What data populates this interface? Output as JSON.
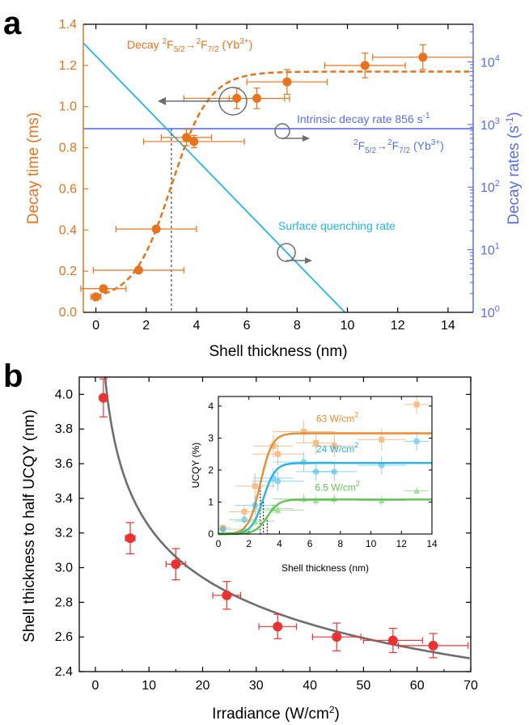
{
  "figure": {
    "panel_a_letter": "a",
    "panel_b_letter": "b"
  },
  "colors": {
    "orange": "#e8731c",
    "cyan": "#22b6ea",
    "blue": "#5a6ee8",
    "red": "#ec3333",
    "gray": "#6e6e6e",
    "inset_orange": "#ef8a2e",
    "inset_cyan": "#2ab2e6",
    "inset_green": "#62c452"
  },
  "chart_data": [
    {
      "id": "panel_a",
      "type": "scatter",
      "xlabel": "Shell thickness (nm)",
      "ylabel": "Decay time (ms)",
      "y2label": "Decay rates (s-1)",
      "xlim": [
        -0.5,
        15
      ],
      "ylim": [
        0,
        1.4
      ],
      "y2lim_log10": [
        0,
        4.6
      ],
      "y2_scale": "log",
      "x_ticks": [
        "0",
        "2",
        "4",
        "6",
        "8",
        "10",
        "12",
        "14"
      ],
      "y_ticks": [
        "0.0",
        "0.2",
        "0.4",
        "0.6",
        "0.8",
        "1.0",
        "1.2",
        "1.4"
      ],
      "y2_tick_exponents": [
        "0",
        "1",
        "2",
        "3",
        "4"
      ],
      "y2_tick_base": "10",
      "series": [
        {
          "name": "Decay 2F5/2→2F7/2 (Yb3+)",
          "axis": "left",
          "points": [
            {
              "x": 0.0,
              "y": 0.075,
              "xerr": 0.2,
              "yerr": 0.0
            },
            {
              "x": 0.3,
              "y": 0.115,
              "xerr": 0.9,
              "yerr": 0.0
            },
            {
              "x": 1.7,
              "y": 0.205,
              "xerr": 1.8,
              "yerr": 0.0
            },
            {
              "x": 2.4,
              "y": 0.405,
              "xerr": 1.6,
              "yerr": 0.0
            },
            {
              "x": 3.6,
              "y": 0.85,
              "xerr": 1.0,
              "yerr": 0.04
            },
            {
              "x": 3.9,
              "y": 0.83,
              "xerr": 2.0,
              "yerr": 0.03
            },
            {
              "x": 5.6,
              "y": 1.04,
              "xerr": 2.1,
              "yerr": 0.05
            },
            {
              "x": 6.4,
              "y": 1.04,
              "xerr": 1.1,
              "yerr": 0.05
            },
            {
              "x": 7.6,
              "y": 1.12,
              "xerr": 1.6,
              "yerr": 0.06
            },
            {
              "x": 10.7,
              "y": 1.2,
              "xerr": 1.6,
              "yerr": 0.06
            },
            {
              "x": 13.0,
              "y": 1.24,
              "xerr": 2.0,
              "yerr": 0.06
            }
          ],
          "fit": "sigmoid",
          "fit_params": {
            "base": 0.06,
            "top": 1.17,
            "x0": 3.0,
            "k": 0.75
          }
        },
        {
          "name": "Intrinsic decay rate 856 s-1",
          "axis": "right",
          "type": "horizontal-line",
          "value": 856
        },
        {
          "name": "Surface quenching rate",
          "axis": "right",
          "type": "line",
          "points": [
            {
              "x": -0.5,
              "y": 20000
            },
            {
              "x": 9.9,
              "y": 1
            }
          ]
        }
      ],
      "annotations": {
        "decay_pre": "Decay ",
        "decay_t1": "2",
        "decay_s1": "F",
        "decay_sub1": "5/2",
        "decay_arrow": "→",
        "decay_t2": "2",
        "decay_s2": "F",
        "decay_sub2": "7/2",
        "decay_post": " (Yb",
        "decay_sup": "3+",
        "decay_end": ")",
        "intrinsic": "Intrinsic decay rate  856 s",
        "intrinsic_sup": "-1",
        "transition_t1": "2",
        "transition_s1": "F",
        "transition_sub1": "5/2",
        "transition_arrow": "→",
        "transition_t2": "2",
        "transition_s2": "F",
        "transition_sub2": "7/2",
        "transition_post": " (Yb",
        "transition_sup": "3+",
        "transition_end": ")",
        "surface": "Surface quenching rate",
        "right_label_main": "Decay rates (s",
        "right_label_sup": "-1",
        "right_label_end": ")"
      },
      "crossing_x": 3.0
    },
    {
      "id": "panel_b",
      "type": "scatter",
      "xlabel_main": "Irradiance (W/cm",
      "xlabel_sup": "2",
      "xlabel_end": ")",
      "ylabel": "Shell thickness to half UCQY (nm)",
      "xlim": [
        -3,
        70
      ],
      "ylim": [
        2.4,
        4.1
      ],
      "x_ticks": [
        "0",
        "10",
        "20",
        "30",
        "40",
        "50",
        "60",
        "70"
      ],
      "y_ticks": [
        "2.4",
        "2.6",
        "2.8",
        "3.0",
        "3.2",
        "3.4",
        "3.6",
        "3.8",
        "4.0"
      ],
      "series": [
        {
          "name": "",
          "points": [
            {
              "x": 1.5,
              "y": 3.98,
              "xerr": 0.3,
              "yerr": 0.11
            },
            {
              "x": 6.5,
              "y": 3.17,
              "xerr": 0.9,
              "yerr": 0.09
            },
            {
              "x": 15.0,
              "y": 3.02,
              "xerr": 1.8,
              "yerr": 0.09
            },
            {
              "x": 24.5,
              "y": 2.84,
              "xerr": 2.6,
              "yerr": 0.08
            },
            {
              "x": 34.0,
              "y": 2.66,
              "xerr": 3.5,
              "yerr": 0.07
            },
            {
              "x": 45.0,
              "y": 2.6,
              "xerr": 4.5,
              "yerr": 0.08
            },
            {
              "x": 55.5,
              "y": 2.58,
              "xerr": 5.5,
              "yerr": 0.07
            },
            {
              "x": 63.0,
              "y": 2.55,
              "xerr": 6.5,
              "yerr": 0.07
            }
          ],
          "fit": "power",
          "fit_params": {
            "a": 4.45,
            "b": -0.138
          }
        }
      ]
    },
    {
      "id": "panel_b_inset",
      "type": "scatter",
      "xlabel": "Shell thickness (nm)",
      "ylabel": "UCQY (%)",
      "xlim": [
        0,
        14
      ],
      "ylim": [
        0,
        4.3
      ],
      "x_ticks": [
        "0",
        "2",
        "4",
        "6",
        "8",
        "10",
        "12",
        "14"
      ],
      "y_ticks": [
        "0",
        "1",
        "2",
        "3",
        "4"
      ],
      "series": [
        {
          "name": "63 W/cm2",
          "label_main": "63 W/cm",
          "label_sup": "2",
          "color_key": "inset_orange",
          "marker": "square",
          "points": [
            {
              "x": 0.3,
              "y": 0.2,
              "xerr": 0.5,
              "yerr": 0.1
            },
            {
              "x": 1.7,
              "y": 0.7,
              "xerr": 1.0,
              "yerr": 0.2
            },
            {
              "x": 2.4,
              "y": 1.5,
              "xerr": 1.3,
              "yerr": 0.4
            },
            {
              "x": 3.6,
              "y": 2.75,
              "xerr": 1.3,
              "yerr": 0.35
            },
            {
              "x": 3.9,
              "y": 2.5,
              "xerr": 1.7,
              "yerr": 0.35
            },
            {
              "x": 5.6,
              "y": 3.2,
              "xerr": 2.0,
              "yerr": 0.35
            },
            {
              "x": 6.4,
              "y": 2.85,
              "xerr": 1.3,
              "yerr": 0.35
            },
            {
              "x": 7.6,
              "y": 2.75,
              "xerr": 1.5,
              "yerr": 0.35
            },
            {
              "x": 10.7,
              "y": 2.95,
              "xerr": 1.6,
              "yerr": 0.35
            },
            {
              "x": 13.0,
              "y": 4.05,
              "xerr": 0.8,
              "yerr": 0.3
            }
          ],
          "fit_params": {
            "top": 3.15,
            "x0": 2.75,
            "k": 2.6
          }
        },
        {
          "name": "24 W/cm2",
          "label_main": "24 W/cm",
          "label_sup": "2",
          "color_key": "inset_cyan",
          "marker": "circle",
          "points": [
            {
              "x": 0.3,
              "y": 0.15,
              "xerr": 0.5,
              "yerr": 0.1
            },
            {
              "x": 1.7,
              "y": 0.45,
              "xerr": 1.0,
              "yerr": 0.15
            },
            {
              "x": 2.4,
              "y": 0.9,
              "xerr": 1.3,
              "yerr": 0.3
            },
            {
              "x": 3.6,
              "y": 1.75,
              "xerr": 1.3,
              "yerr": 0.3
            },
            {
              "x": 3.9,
              "y": 1.65,
              "xerr": 1.7,
              "yerr": 0.3
            },
            {
              "x": 5.6,
              "y": 2.25,
              "xerr": 2.0,
              "yerr": 0.3
            },
            {
              "x": 6.4,
              "y": 1.95,
              "xerr": 1.3,
              "yerr": 0.3
            },
            {
              "x": 7.6,
              "y": 1.95,
              "xerr": 1.5,
              "yerr": 0.3
            },
            {
              "x": 10.7,
              "y": 2.15,
              "xerr": 1.6,
              "yerr": 0.3
            },
            {
              "x": 13.0,
              "y": 2.9,
              "xerr": 0.8,
              "yerr": 0.3
            }
          ],
          "fit_params": {
            "top": 2.22,
            "x0": 2.95,
            "k": 2.6
          }
        },
        {
          "name": "6.5 W/cm2",
          "label_main": "6.5 W/cm",
          "label_sup": "2",
          "color_key": "inset_green",
          "marker": "triangle",
          "points": [
            {
              "x": 0.3,
              "y": 0.05,
              "xerr": 0.5,
              "yerr": 0.05
            },
            {
              "x": 1.7,
              "y": 0.15,
              "xerr": 1.0,
              "yerr": 0.1
            },
            {
              "x": 2.4,
              "y": 0.4,
              "xerr": 1.3,
              "yerr": 0.15
            },
            {
              "x": 3.6,
              "y": 0.8,
              "xerr": 1.3,
              "yerr": 0.15
            },
            {
              "x": 3.9,
              "y": 0.75,
              "xerr": 1.7,
              "yerr": 0.15
            },
            {
              "x": 5.6,
              "y": 1.1,
              "xerr": 2.0,
              "yerr": 0.15
            },
            {
              "x": 6.4,
              "y": 1.05,
              "xerr": 1.3,
              "yerr": 0.15
            },
            {
              "x": 7.6,
              "y": 1.1,
              "xerr": 1.5,
              "yerr": 0.15
            },
            {
              "x": 10.7,
              "y": 1.05,
              "xerr": 1.6,
              "yerr": 0.15
            },
            {
              "x": 13.0,
              "y": 1.35,
              "xerr": 0.8,
              "yerr": 0.1
            }
          ],
          "fit_params": {
            "top": 1.08,
            "x0": 3.2,
            "k": 2.6
          }
        }
      ],
      "dotted_x": [
        2.75,
        2.95,
        3.2
      ]
    }
  ]
}
